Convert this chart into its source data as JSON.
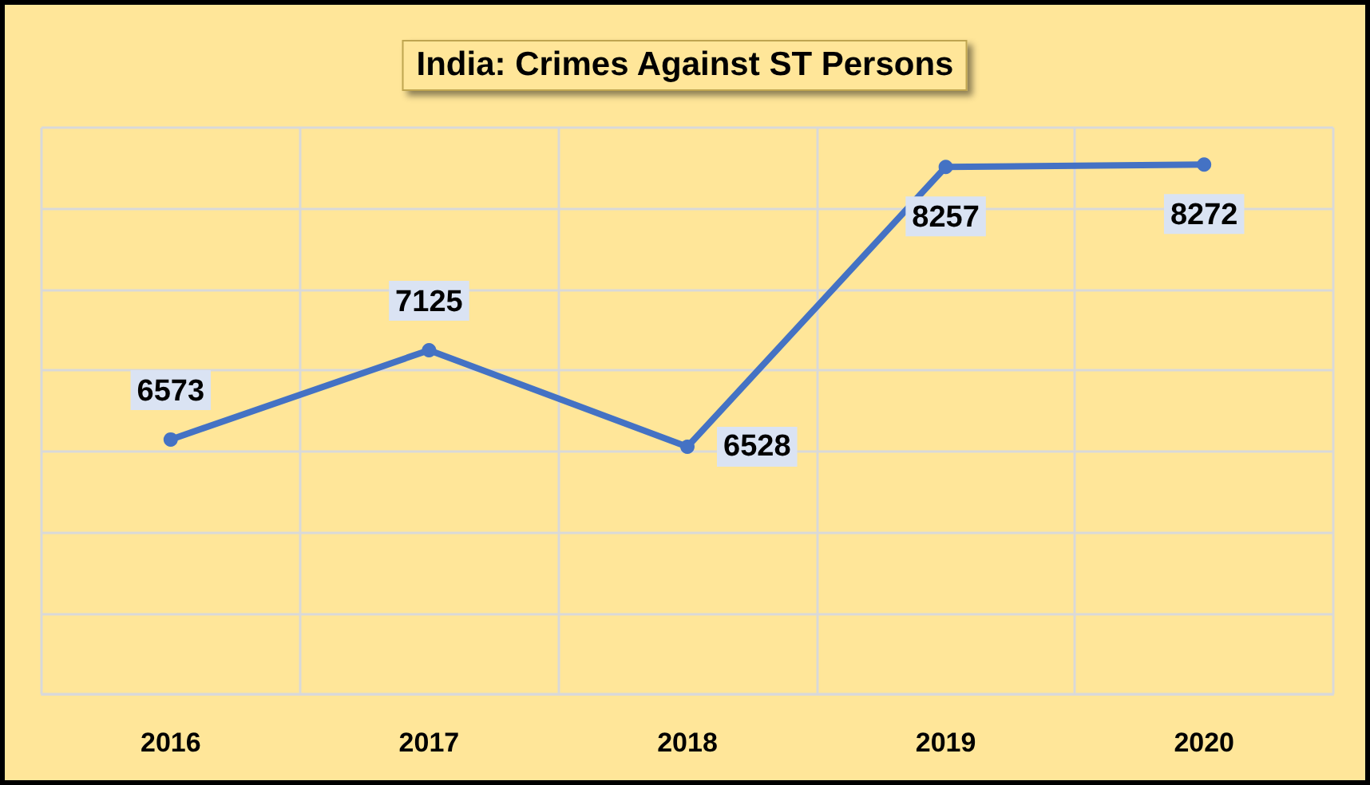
{
  "chart_data": {
    "type": "line",
    "title": "India: Crimes Against ST Persons",
    "categories": [
      "2016",
      "2017",
      "2018",
      "2019",
      "2020"
    ],
    "series": [
      {
        "color": "#4472c4",
        "values": [
          6573,
          7125,
          6528,
          8257,
          8272
        ]
      }
    ],
    "ylim": [
      5000,
      8500
    ],
    "yticks": [
      {
        "value": 5000,
        "label": null
      },
      {
        "value": 5500,
        "label": null
      },
      {
        "value": 6000,
        "label": null
      },
      {
        "value": 6500,
        "label": null
      },
      {
        "value": 7000,
        "label": null
      },
      {
        "value": 7500,
        "label": null
      },
      {
        "value": 8000,
        "label": null
      },
      {
        "value": 8500,
        "label": null
      }
    ],
    "tick_labels": "x",
    "grid": true,
    "data_labels": true,
    "marker": "circle",
    "line_style": "solid"
  }
}
